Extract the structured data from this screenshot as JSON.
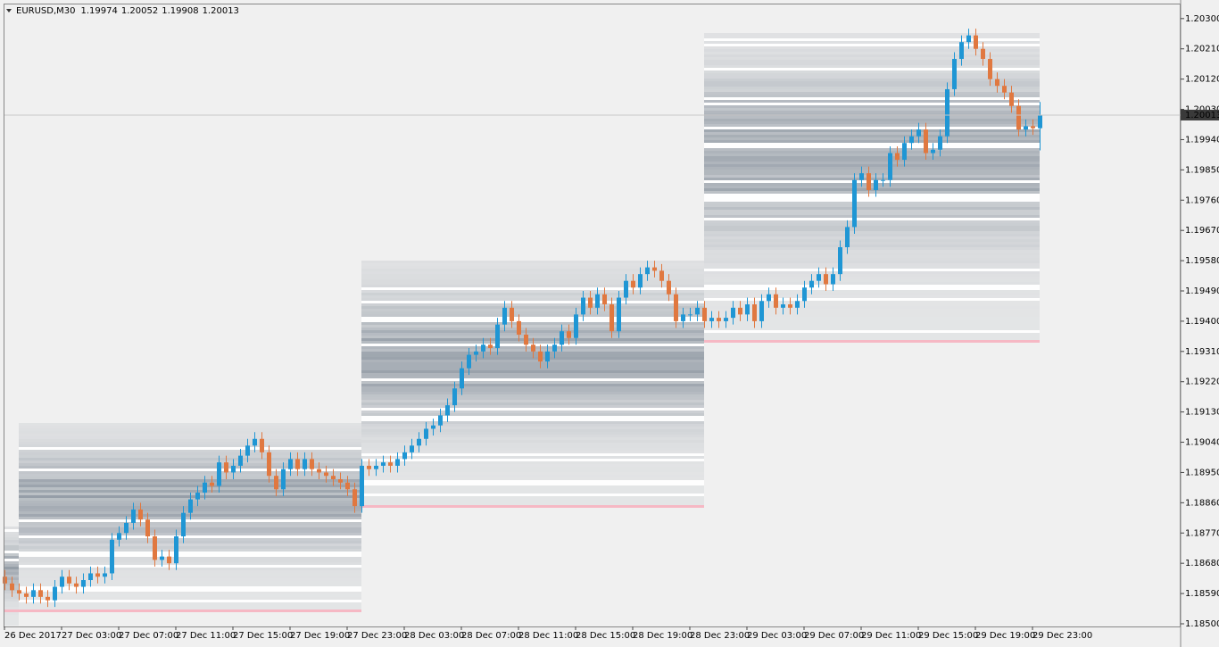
{
  "chart_data": {
    "type": "candlestick",
    "symbol": "EURUSD,M30",
    "categories": [
      "26 Dec 2017",
      null,
      null,
      null,
      null,
      null,
      null,
      null,
      "27 Dec 03:00",
      null,
      null,
      null,
      null,
      null,
      null,
      null,
      "27 Dec 07:00",
      null,
      null,
      null,
      null,
      null,
      null,
      null,
      "27 Dec 11:00",
      null,
      null,
      null,
      null,
      null,
      null,
      null,
      "27 Dec 15:00",
      null,
      null,
      null,
      null,
      null,
      null,
      null,
      "27 Dec 19:00",
      null,
      null,
      null,
      null,
      null,
      null,
      null,
      "27 Dec 23:00",
      null,
      null,
      null,
      null,
      null,
      null,
      null,
      "28 Dec 03:00",
      null,
      null,
      null,
      null,
      null,
      null,
      null,
      "28 Dec 07:00",
      null,
      null,
      null,
      null,
      null,
      null,
      null,
      "28 Dec 11:00",
      null,
      null,
      null,
      null,
      null,
      null,
      null,
      "28 Dec 15:00",
      null,
      null,
      null,
      null,
      null,
      null,
      null,
      "28 Dec 19:00",
      null,
      null,
      null,
      null,
      null,
      null,
      null,
      "28 Dec 23:00",
      null,
      null,
      null,
      null,
      null,
      null,
      null,
      "29 Dec 03:00",
      null,
      null,
      null,
      null,
      null,
      null,
      null,
      "29 Dec 07:00",
      null,
      null,
      null,
      null,
      null,
      null,
      null,
      "29 Dec 11:00",
      null,
      null,
      null,
      null,
      null,
      null,
      null,
      "29 Dec 15:00",
      null,
      null,
      null,
      null,
      null,
      null,
      null,
      "29 Dec 19:00",
      null,
      null,
      null,
      null,
      null,
      null,
      null,
      "29 Dec 23:00",
      null
    ],
    "open": [
      1.1864,
      1.1862,
      1.186,
      1.1859,
      1.1858,
      1.186,
      1.1858,
      1.1857,
      1.1861,
      1.1864,
      1.1862,
      1.1861,
      1.1863,
      1.1865,
      1.1864,
      1.1865,
      1.1875,
      1.1877,
      1.188,
      1.1884,
      1.1881,
      1.1876,
      1.1869,
      1.187,
      1.1868,
      1.1876,
      1.1883,
      1.1887,
      1.1889,
      1.1892,
      1.1891,
      1.1898,
      1.1895,
      1.1897,
      1.19,
      1.1903,
      1.1905,
      1.1901,
      1.1894,
      1.189,
      1.1896,
      1.1899,
      1.1896,
      1.1899,
      1.1896,
      1.1895,
      1.1894,
      1.1893,
      1.1892,
      1.189,
      1.1885,
      1.1897,
      1.1896,
      1.1897,
      1.1898,
      1.1897,
      1.1899,
      1.1901,
      1.1903,
      1.1905,
      1.1908,
      1.1909,
      1.1912,
      1.1915,
      1.192,
      1.1926,
      1.193,
      1.1931,
      1.1933,
      1.1932,
      1.1939,
      1.1944,
      1.194,
      1.1936,
      1.1933,
      1.1931,
      1.1928,
      1.1931,
      1.1933,
      1.1937,
      1.1935,
      1.1942,
      1.1947,
      1.1944,
      1.1948,
      1.1945,
      1.1937,
      1.1947,
      1.1952,
      1.195,
      1.1954,
      1.1956,
      1.1955,
      1.1952,
      1.1948,
      1.194,
      1.1942,
      1.1942,
      1.1944,
      1.194,
      1.1941,
      1.194,
      1.1941,
      1.1944,
      1.1942,
      1.1945,
      1.194,
      1.1946,
      1.1948,
      1.1944,
      1.1945,
      1.1944,
      1.1946,
      1.195,
      1.1952,
      1.1954,
      1.1951,
      1.1954,
      1.1962,
      1.1968,
      1.1982,
      1.1984,
      1.1979,
      1.1982,
      1.1982,
      1.199,
      1.1988,
      1.1993,
      1.1995,
      1.1997,
      1.199,
      1.1991,
      1.1995,
      1.2009,
      1.2018,
      1.2023,
      1.2025,
      1.2021,
      1.2018,
      1.2012,
      1.201,
      1.2008,
      1.2004,
      1.1997,
      1.1998,
      1.19974
    ],
    "high": [
      1.1866,
      1.1864,
      1.1862,
      1.1861,
      1.1862,
      1.1862,
      1.186,
      1.1863,
      1.1866,
      1.1866,
      1.1864,
      1.1865,
      1.1867,
      1.1867,
      1.1867,
      1.1877,
      1.1879,
      1.1882,
      1.1886,
      1.1886,
      1.1883,
      1.1878,
      1.1872,
      1.1872,
      1.1878,
      1.1885,
      1.1889,
      1.1891,
      1.1894,
      1.1894,
      1.19,
      1.19,
      1.1899,
      1.1902,
      1.1905,
      1.1907,
      1.1907,
      1.1903,
      1.1896,
      1.1898,
      1.1901,
      1.1901,
      1.1901,
      1.1901,
      1.1898,
      1.1897,
      1.1896,
      1.1895,
      1.1894,
      1.1892,
      1.1899,
      1.1899,
      1.1899,
      1.19,
      1.19,
      1.1901,
      1.1903,
      1.1905,
      1.1907,
      1.191,
      1.1911,
      1.1914,
      1.1917,
      1.1922,
      1.1928,
      1.1932,
      1.1933,
      1.1935,
      1.1935,
      1.1941,
      1.1946,
      1.1946,
      1.1942,
      1.1938,
      1.1935,
      1.1933,
      1.1933,
      1.1935,
      1.1939,
      1.1939,
      1.1944,
      1.1949,
      1.1949,
      1.195,
      1.195,
      1.1947,
      1.1949,
      1.1954,
      1.1954,
      1.1956,
      1.1958,
      1.1958,
      1.1957,
      1.1954,
      1.195,
      1.1944,
      1.1944,
      1.1946,
      1.1946,
      1.1943,
      1.1943,
      1.1943,
      1.1946,
      1.1946,
      1.1947,
      1.1947,
      1.1948,
      1.195,
      1.195,
      1.1947,
      1.1947,
      1.1948,
      1.1952,
      1.1954,
      1.1956,
      1.1956,
      1.1956,
      1.1964,
      1.197,
      1.1984,
      1.1986,
      1.1986,
      1.1984,
      1.1984,
      1.1992,
      1.1992,
      1.1995,
      1.1997,
      1.1999,
      1.1999,
      1.1993,
      1.1997,
      1.2011,
      1.202,
      1.2025,
      1.2027,
      1.2027,
      1.2023,
      1.202,
      1.2014,
      1.2012,
      1.201,
      1.2006,
      1.2,
      1.2,
      1.20052
    ],
    "low": [
      1.186,
      1.1858,
      1.1857,
      1.1856,
      1.1856,
      1.1856,
      1.1855,
      1.1855,
      1.1859,
      1.186,
      1.1859,
      1.1859,
      1.1861,
      1.1862,
      1.1862,
      1.1863,
      1.1873,
      1.1875,
      1.1878,
      1.1879,
      1.1874,
      1.1867,
      1.1867,
      1.1866,
      1.1866,
      1.1874,
      1.1881,
      1.1885,
      1.1887,
      1.1889,
      1.1889,
      1.1893,
      1.1893,
      1.1895,
      1.1898,
      1.1901,
      1.1899,
      1.1892,
      1.1888,
      1.1888,
      1.1894,
      1.1894,
      1.1894,
      1.1894,
      1.1893,
      1.1892,
      1.1891,
      1.189,
      1.1888,
      1.1883,
      1.1883,
      1.1894,
      1.1894,
      1.1895,
      1.1895,
      1.1895,
      1.1897,
      1.1899,
      1.1901,
      1.1903,
      1.1906,
      1.1907,
      1.191,
      1.1913,
      1.1918,
      1.1924,
      1.1928,
      1.1929,
      1.193,
      1.193,
      1.1937,
      1.1938,
      1.1934,
      1.1931,
      1.1929,
      1.1926,
      1.1926,
      1.1929,
      1.1931,
      1.1933,
      1.1933,
      1.194,
      1.1942,
      1.1942,
      1.1943,
      1.1935,
      1.1935,
      1.1945,
      1.1948,
      1.1948,
      1.1952,
      1.1953,
      1.195,
      1.1946,
      1.1938,
      1.1938,
      1.194,
      1.194,
      1.1938,
      1.1938,
      1.1938,
      1.1938,
      1.1939,
      1.194,
      1.194,
      1.1938,
      1.1938,
      1.1944,
      1.1942,
      1.1942,
      1.1942,
      1.1942,
      1.1944,
      1.1948,
      1.195,
      1.1949,
      1.1949,
      1.1952,
      1.196,
      1.1966,
      1.198,
      1.1977,
      1.1977,
      1.198,
      1.198,
      1.1986,
      1.1986,
      1.1991,
      1.1993,
      1.1988,
      1.1988,
      1.1989,
      1.1993,
      1.2007,
      1.2016,
      1.2021,
      1.2019,
      1.2016,
      1.201,
      1.2008,
      1.2006,
      1.2002,
      1.1995,
      1.1995,
      1.19954,
      1.19908
    ],
    "close": [
      1.1862,
      1.186,
      1.1859,
      1.1858,
      1.186,
      1.1858,
      1.1857,
      1.1861,
      1.1864,
      1.1862,
      1.1861,
      1.1863,
      1.1865,
      1.1864,
      1.1865,
      1.1875,
      1.1877,
      1.188,
      1.1884,
      1.1881,
      1.1876,
      1.1869,
      1.187,
      1.1868,
      1.1876,
      1.1883,
      1.1887,
      1.1889,
      1.1892,
      1.1891,
      1.1898,
      1.1895,
      1.1897,
      1.19,
      1.1903,
      1.1905,
      1.1901,
      1.1894,
      1.189,
      1.1896,
      1.1899,
      1.1896,
      1.1899,
      1.1896,
      1.1895,
      1.1894,
      1.1893,
      1.1892,
      1.189,
      1.1885,
      1.1897,
      1.1896,
      1.1897,
      1.1898,
      1.1897,
      1.1899,
      1.1901,
      1.1903,
      1.1905,
      1.1908,
      1.1909,
      1.1912,
      1.1915,
      1.192,
      1.1926,
      1.193,
      1.1931,
      1.1933,
      1.1932,
      1.1939,
      1.1944,
      1.194,
      1.1936,
      1.1933,
      1.1931,
      1.1928,
      1.1931,
      1.1933,
      1.1937,
      1.1935,
      1.1942,
      1.1947,
      1.1944,
      1.1948,
      1.1945,
      1.1937,
      1.1947,
      1.1952,
      1.195,
      1.1954,
      1.1956,
      1.1955,
      1.1952,
      1.1948,
      1.194,
      1.1942,
      1.1942,
      1.1944,
      1.194,
      1.1941,
      1.194,
      1.1941,
      1.1944,
      1.1942,
      1.1945,
      1.194,
      1.1946,
      1.1948,
      1.1944,
      1.1945,
      1.1944,
      1.1946,
      1.195,
      1.1952,
      1.1954,
      1.1951,
      1.1954,
      1.1962,
      1.1968,
      1.1982,
      1.1984,
      1.1979,
      1.1982,
      1.1982,
      1.199,
      1.1988,
      1.1993,
      1.1995,
      1.1997,
      1.199,
      1.1991,
      1.1995,
      1.2009,
      1.2018,
      1.2023,
      1.2025,
      1.2021,
      1.2018,
      1.2012,
      1.201,
      1.2008,
      1.2004,
      1.1997,
      1.1998,
      1.19974,
      1.20013
    ],
    "up_color": "#1f96d4",
    "down_color": "#e07840",
    "ylim": [
      1.18492,
      1.20342
    ],
    "yticks": [
      {
        "value": 1.203,
        "label": "1.20300"
      },
      {
        "value": 1.2021,
        "label": "1.20210"
      },
      {
        "value": 1.2012,
        "label": "1.20120"
      },
      {
        "value": 1.2003,
        "label": "1.20030"
      },
      {
        "value": 1.1994,
        "label": "1.19940"
      },
      {
        "value": 1.1985,
        "label": "1.19850"
      },
      {
        "value": 1.1976,
        "label": "1.19760"
      },
      {
        "value": 1.1967,
        "label": "1.19670"
      },
      {
        "value": 1.1958,
        "label": "1.19580"
      },
      {
        "value": 1.1949,
        "label": "1.19490"
      },
      {
        "value": 1.194,
        "label": "1.19400"
      },
      {
        "value": 1.1931,
        "label": "1.19310"
      },
      {
        "value": 1.1922,
        "label": "1.19220"
      },
      {
        "value": 1.1913,
        "label": "1.19130"
      },
      {
        "value": 1.1904,
        "label": "1.19040"
      },
      {
        "value": 1.1895,
        "label": "1.18950"
      },
      {
        "value": 1.1886,
        "label": "1.18860"
      },
      {
        "value": 1.1877,
        "label": "1.18770"
      },
      {
        "value": 1.1868,
        "label": "1.18680"
      },
      {
        "value": 1.1859,
        "label": "1.18590"
      },
      {
        "value": 1.185,
        "label": "1.18500"
      }
    ],
    "grid": false
  }
}
